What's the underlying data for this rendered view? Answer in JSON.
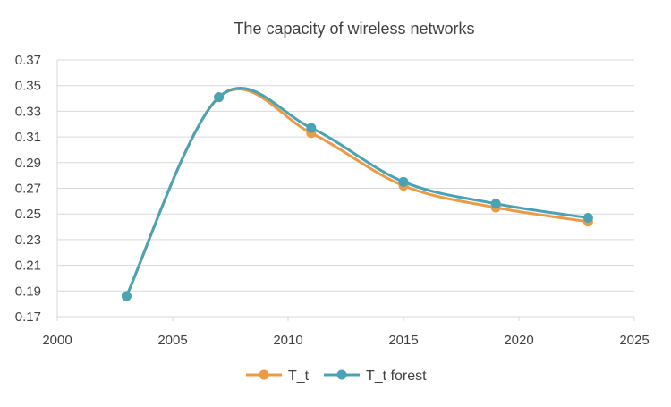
{
  "chart_data": {
    "type": "line",
    "title": "The capacity of wireless networks",
    "xlabel": "",
    "ylabel": "",
    "xlim": [
      2000,
      2025
    ],
    "ylim": [
      0.17,
      0.37
    ],
    "x_ticks": [
      2000,
      2005,
      2010,
      2015,
      2020,
      2025
    ],
    "x_tick_labels": [
      "2000",
      "2005",
      "2010",
      "2015",
      "2020",
      "2025"
    ],
    "y_ticks": [
      0.17,
      0.19,
      0.21,
      0.23,
      0.25,
      0.27,
      0.29,
      0.31,
      0.33,
      0.35,
      0.37
    ],
    "y_tick_labels": [
      "0.17",
      "0.19",
      "0.21",
      "0.23",
      "0.25",
      "0.27",
      "0.29",
      "0.31",
      "0.33",
      "0.35",
      "0.37"
    ],
    "grid": "horizontal",
    "smooth": true,
    "legend_position": "bottom",
    "series": [
      {
        "name": "T_t",
        "color": "#ED9A45",
        "x": [
          2003,
          2007,
          2011,
          2015,
          2019,
          2023
        ],
        "y": [
          0.186,
          0.341,
          0.313,
          0.272,
          0.255,
          0.244
        ]
      },
      {
        "name": "T_t forest",
        "color": "#4AA3B5",
        "x": [
          2003,
          2007,
          2011,
          2015,
          2019,
          2023
        ],
        "y": [
          0.186,
          0.341,
          0.317,
          0.275,
          0.258,
          0.247
        ]
      }
    ]
  }
}
